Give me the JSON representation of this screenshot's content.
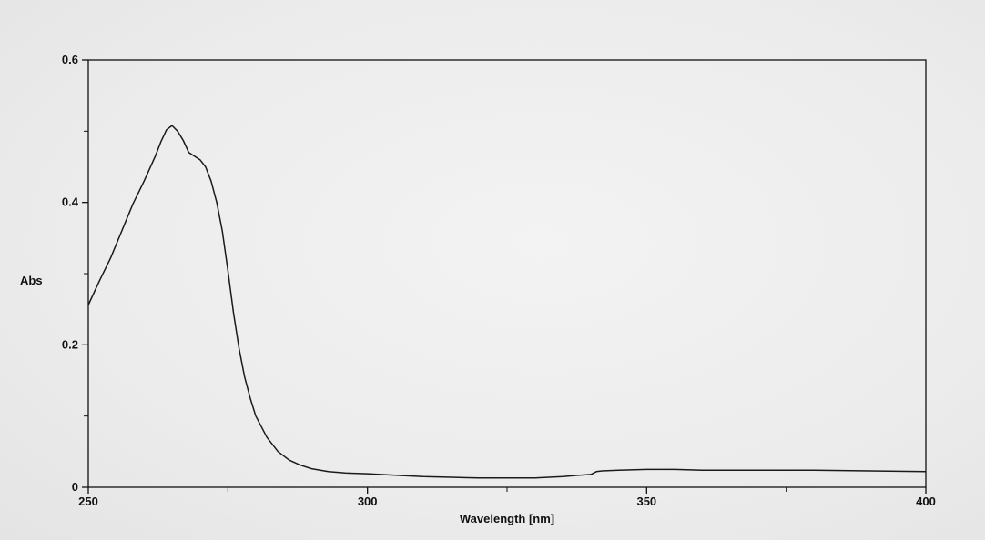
{
  "chart_data": {
    "type": "line",
    "title": "",
    "xlabel": "Wavelength [nm]",
    "ylabel": "Abs",
    "xlim": [
      250,
      400
    ],
    "ylim": [
      0,
      0.6
    ],
    "x_ticks": [
      250,
      300,
      350,
      400
    ],
    "x_tick_labels": [
      "250",
      "300",
      "350",
      "400"
    ],
    "x_minor_ticks": [
      275,
      325,
      375
    ],
    "y_ticks": [
      0,
      0.2,
      0.4,
      0.6
    ],
    "y_tick_labels": [
      "0",
      "0.2",
      "0.4",
      "0.6"
    ],
    "y_minor_ticks": [
      0.1,
      0.3,
      0.5
    ],
    "grid": false,
    "legend": "none",
    "line_color": "#1a1a1a",
    "series": [
      {
        "x": [
          250,
          252,
          254,
          256,
          258,
          260,
          262,
          263,
          264,
          265,
          266,
          267,
          268,
          269,
          270,
          271,
          272,
          273,
          274,
          275,
          276,
          277,
          278,
          279,
          280,
          282,
          284,
          286,
          288,
          290,
          293,
          296,
          300,
          305,
          310,
          315,
          320,
          325,
          330,
          335,
          338,
          340,
          341,
          342,
          345,
          350,
          355,
          360,
          370,
          380,
          390,
          400
        ],
        "y": [
          0.256,
          0.29,
          0.322,
          0.36,
          0.398,
          0.43,
          0.465,
          0.485,
          0.502,
          0.508,
          0.5,
          0.487,
          0.47,
          0.465,
          0.46,
          0.45,
          0.43,
          0.4,
          0.36,
          0.305,
          0.245,
          0.195,
          0.155,
          0.125,
          0.1,
          0.07,
          0.05,
          0.038,
          0.031,
          0.026,
          0.022,
          0.02,
          0.019,
          0.017,
          0.015,
          0.014,
          0.013,
          0.013,
          0.013,
          0.015,
          0.017,
          0.018,
          0.022,
          0.023,
          0.024,
          0.025,
          0.025,
          0.024,
          0.024,
          0.024,
          0.023,
          0.022
        ]
      }
    ]
  }
}
